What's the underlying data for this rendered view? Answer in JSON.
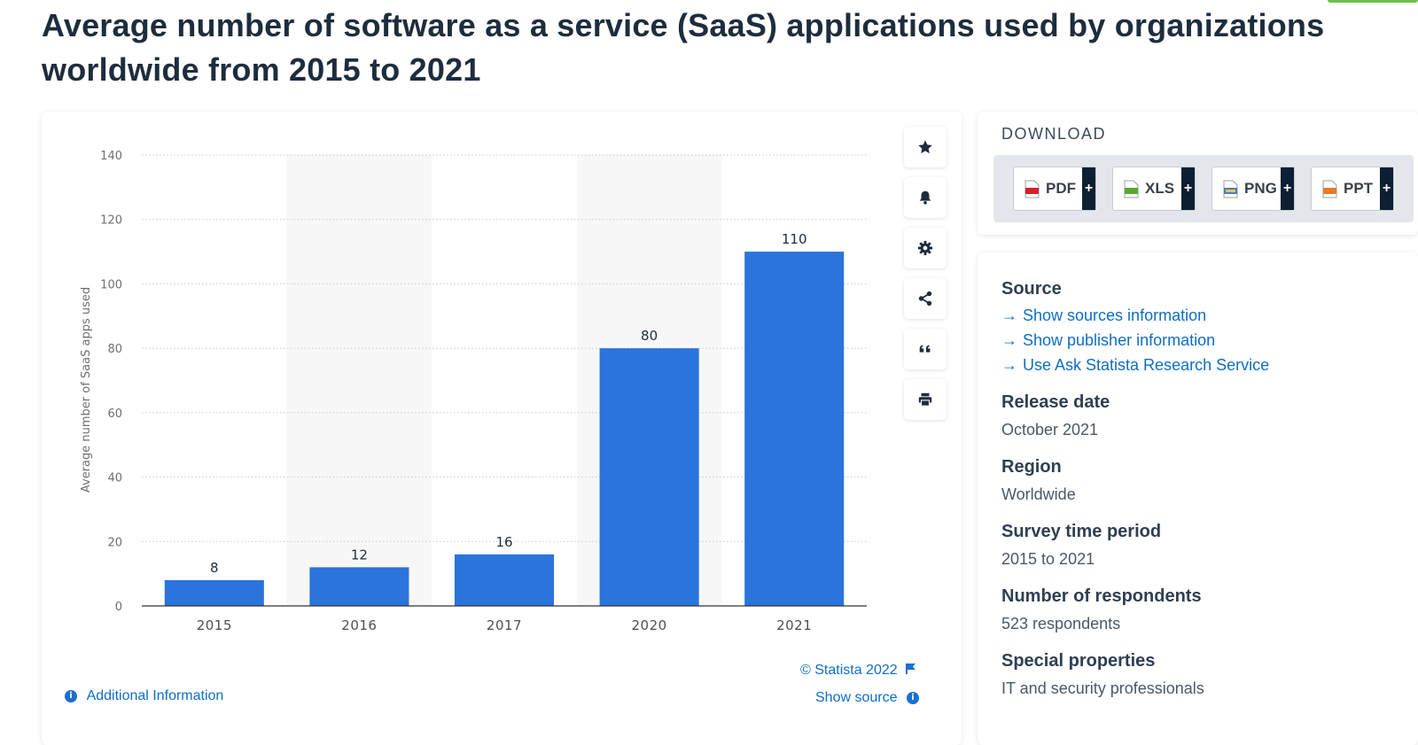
{
  "title": "Average number of software as a service (SaaS) applications used by organizations worldwide from 2015 to 2021",
  "chart_data": {
    "type": "bar",
    "categories": [
      "2015",
      "2016",
      "2017",
      "2020",
      "2021"
    ],
    "values": [
      8,
      12,
      16,
      80,
      110
    ],
    "title": "",
    "xlabel": "",
    "ylabel": "Average number of SaaS apps used",
    "ylim": [
      0,
      140
    ],
    "yticks": [
      0,
      20,
      40,
      60,
      80,
      100,
      120,
      140
    ],
    "grid": "horizontal dotted",
    "legend": "none",
    "bar_color": "#2a74db"
  },
  "toolbar": {
    "icons": [
      "star-icon",
      "bell-icon",
      "gear-icon",
      "share-icon",
      "quote-icon",
      "print-icon"
    ]
  },
  "footer": {
    "copyright": "© Statista 2022",
    "show_source": "Show source",
    "additional_info": "Additional Information"
  },
  "download": {
    "title": "DOWNLOAD",
    "formats": [
      "PDF",
      "XLS",
      "PNG",
      "PPT"
    ],
    "plus": "+"
  },
  "details": {
    "source_heading": "Source",
    "source_links": [
      "Show sources information",
      "Show publisher information",
      "Use Ask Statista Research Service"
    ],
    "release_date_heading": "Release date",
    "release_date": "October 2021",
    "region_heading": "Region",
    "region": "Worldwide",
    "survey_period_heading": "Survey time period",
    "survey_period": "2015 to 2021",
    "respondents_heading": "Number of respondents",
    "respondents": "523 respondents",
    "special_heading": "Special properties",
    "special": "IT and security professionals"
  },
  "colors": {
    "accent": "#0e6ec4",
    "bar": "#2a74db",
    "title": "#1d2d3e"
  }
}
